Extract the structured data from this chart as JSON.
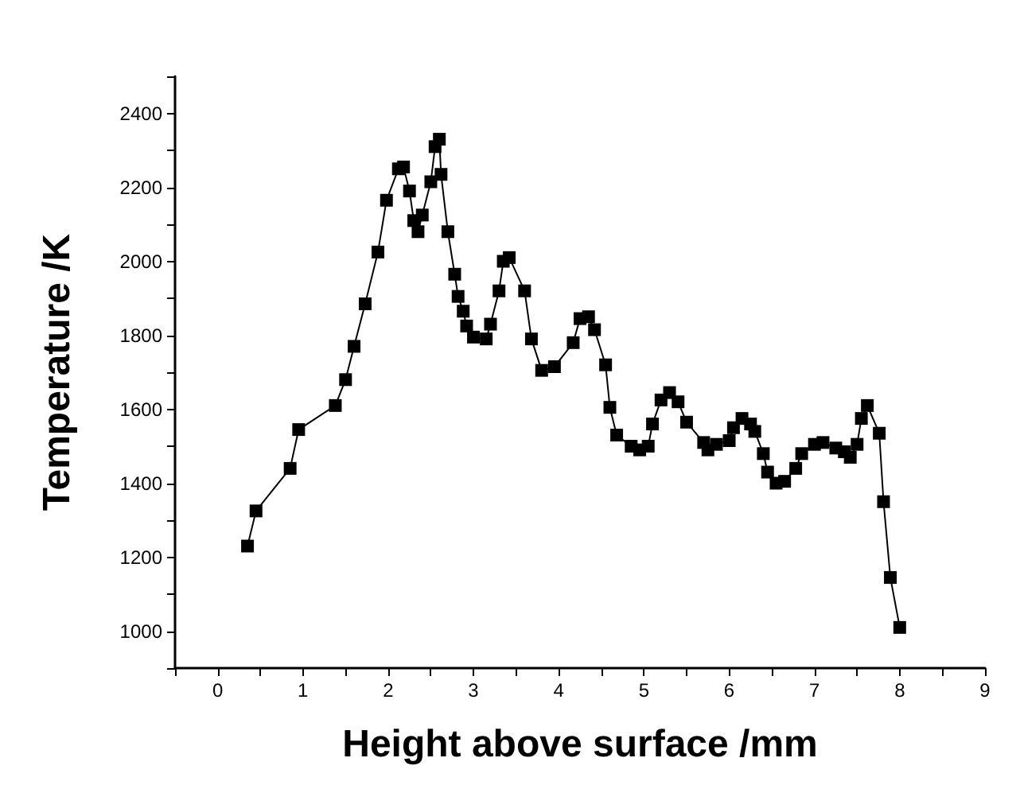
{
  "chart_data": {
    "type": "line",
    "xlabel": "Height above surface /mm",
    "ylabel": "Temperature /K",
    "marker": "square",
    "line_style": "solid",
    "xlim": [
      -0.5,
      9
    ],
    "ylim": [
      900,
      2500
    ],
    "xticks": [
      {
        "value": -0.5,
        "label": null
      },
      0,
      {
        "value": 0.5,
        "label": null
      },
      1,
      {
        "value": 1.5,
        "label": null
      },
      2,
      {
        "value": 2.5,
        "label": null
      },
      3,
      {
        "value": 3.5,
        "label": null
      },
      4,
      {
        "value": 4.5,
        "label": null
      },
      5,
      {
        "value": 5.5,
        "label": null
      },
      6,
      {
        "value": 6.5,
        "label": null
      },
      7,
      {
        "value": 7.5,
        "label": null
      },
      8,
      {
        "value": 8.5,
        "label": null
      },
      9
    ],
    "yticks": [
      {
        "value": 900,
        "label": null
      },
      1000,
      {
        "value": 1100,
        "label": null
      },
      1200,
      {
        "value": 1300,
        "label": null
      },
      1400,
      {
        "value": 1500,
        "label": null
      },
      1600,
      {
        "value": 1700,
        "label": null
      },
      1800,
      {
        "value": 1900,
        "label": null
      },
      2000,
      {
        "value": 2100,
        "label": null
      },
      2200,
      {
        "value": 2300,
        "label": null
      },
      2400,
      {
        "value": 2500,
        "label": null
      }
    ],
    "series": [
      {
        "color": "#000000",
        "x": [
          0.35,
          0.45,
          0.85,
          0.95,
          1.38,
          1.5,
          1.6,
          1.73,
          1.88,
          1.98,
          2.12,
          2.18,
          2.25,
          2.3,
          2.35,
          2.4,
          2.5,
          2.55,
          2.6,
          2.62,
          2.7,
          2.78,
          2.82,
          2.88,
          2.92,
          3.0,
          3.15,
          3.2,
          3.3,
          3.35,
          3.42,
          3.6,
          3.68,
          3.8,
          3.95,
          4.17,
          4.25,
          4.35,
          4.42,
          4.55,
          4.6,
          4.68,
          4.85,
          4.95,
          5.05,
          5.1,
          5.2,
          5.3,
          5.4,
          5.5,
          5.7,
          5.75,
          5.85,
          6.0,
          6.05,
          6.15,
          6.25,
          6.3,
          6.4,
          6.45,
          6.55,
          6.65,
          6.78,
          6.85,
          7.0,
          7.1,
          7.25,
          7.35,
          7.42,
          7.5,
          7.55,
          7.62,
          7.76,
          7.81,
          7.89,
          8.0
        ],
        "values": [
          1230,
          1325,
          1440,
          1545,
          1610,
          1680,
          1770,
          1885,
          2025,
          2165,
          2250,
          2255,
          2190,
          2110,
          2080,
          2125,
          2215,
          2310,
          2330,
          2235,
          2080,
          1965,
          1905,
          1865,
          1825,
          1795,
          1790,
          1830,
          1920,
          2000,
          2010,
          1920,
          1790,
          1705,
          1715,
          1780,
          1845,
          1850,
          1815,
          1720,
          1605,
          1530,
          1500,
          1490,
          1500,
          1560,
          1625,
          1645,
          1620,
          1565,
          1510,
          1490,
          1505,
          1515,
          1550,
          1575,
          1560,
          1540,
          1480,
          1430,
          1400,
          1405,
          1440,
          1480,
          1505,
          1510,
          1495,
          1485,
          1470,
          1505,
          1575,
          1610,
          1535,
          1350,
          1145,
          1010
        ]
      }
    ]
  }
}
